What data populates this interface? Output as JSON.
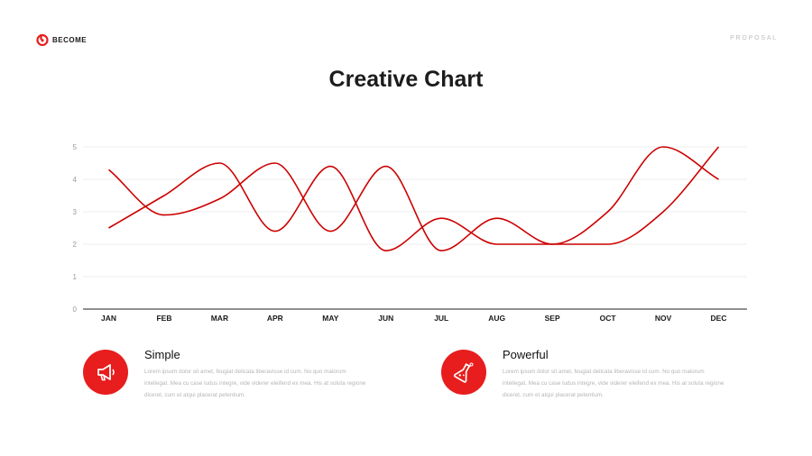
{
  "brand": {
    "name": "BECOME",
    "tag": "PROPOSAL",
    "accent": "#e81d1d"
  },
  "slide": {
    "title": "Creative Chart"
  },
  "chart_data": {
    "type": "line",
    "categories": [
      "JAN",
      "FEB",
      "MAR",
      "APR",
      "MAY",
      "JUN",
      "JUL",
      "AUG",
      "SEP",
      "OCT",
      "NOV",
      "DEC"
    ],
    "series": [
      {
        "values": [
          4.3,
          2.9,
          3.4,
          4.5,
          2.4,
          4.4,
          1.8,
          2.8,
          2.0,
          2.0,
          3.0,
          5.0
        ],
        "color": "#cc0000"
      },
      {
        "values": [
          2.5,
          3.5,
          4.5,
          2.4,
          4.4,
          1.8,
          2.8,
          2.0,
          2.0,
          3.0,
          5.0,
          4.0
        ],
        "color": "#cc0000"
      }
    ],
    "yticks": [
      0,
      1,
      2,
      3,
      4,
      5
    ],
    "ylim": [
      0,
      5
    ],
    "grid": true,
    "smooth": true
  },
  "features": [
    {
      "icon": "megaphone-icon",
      "title": "Simple",
      "lines": [
        "Lorem ipsum dolor sit amet, feugiat delicata liberavisse id cum. No quo maiorum",
        "intellegat. Mea cu case ludus integre, vide viderer eleifend ex mea. His at soluta regione",
        "diceret, cum et atqui placerat petentium."
      ]
    },
    {
      "icon": "flask-icon",
      "title": "Powerful",
      "lines": [
        "Lorem ipsum dolor sit amet, feugiat delicata liberavisse id cum. No quo maiorum",
        "intellegat. Mea cu case ludus integre, vide viderer eleifend ex mea. His at soluta regione",
        "diceret, cum et atqui placerat petentium."
      ]
    }
  ]
}
